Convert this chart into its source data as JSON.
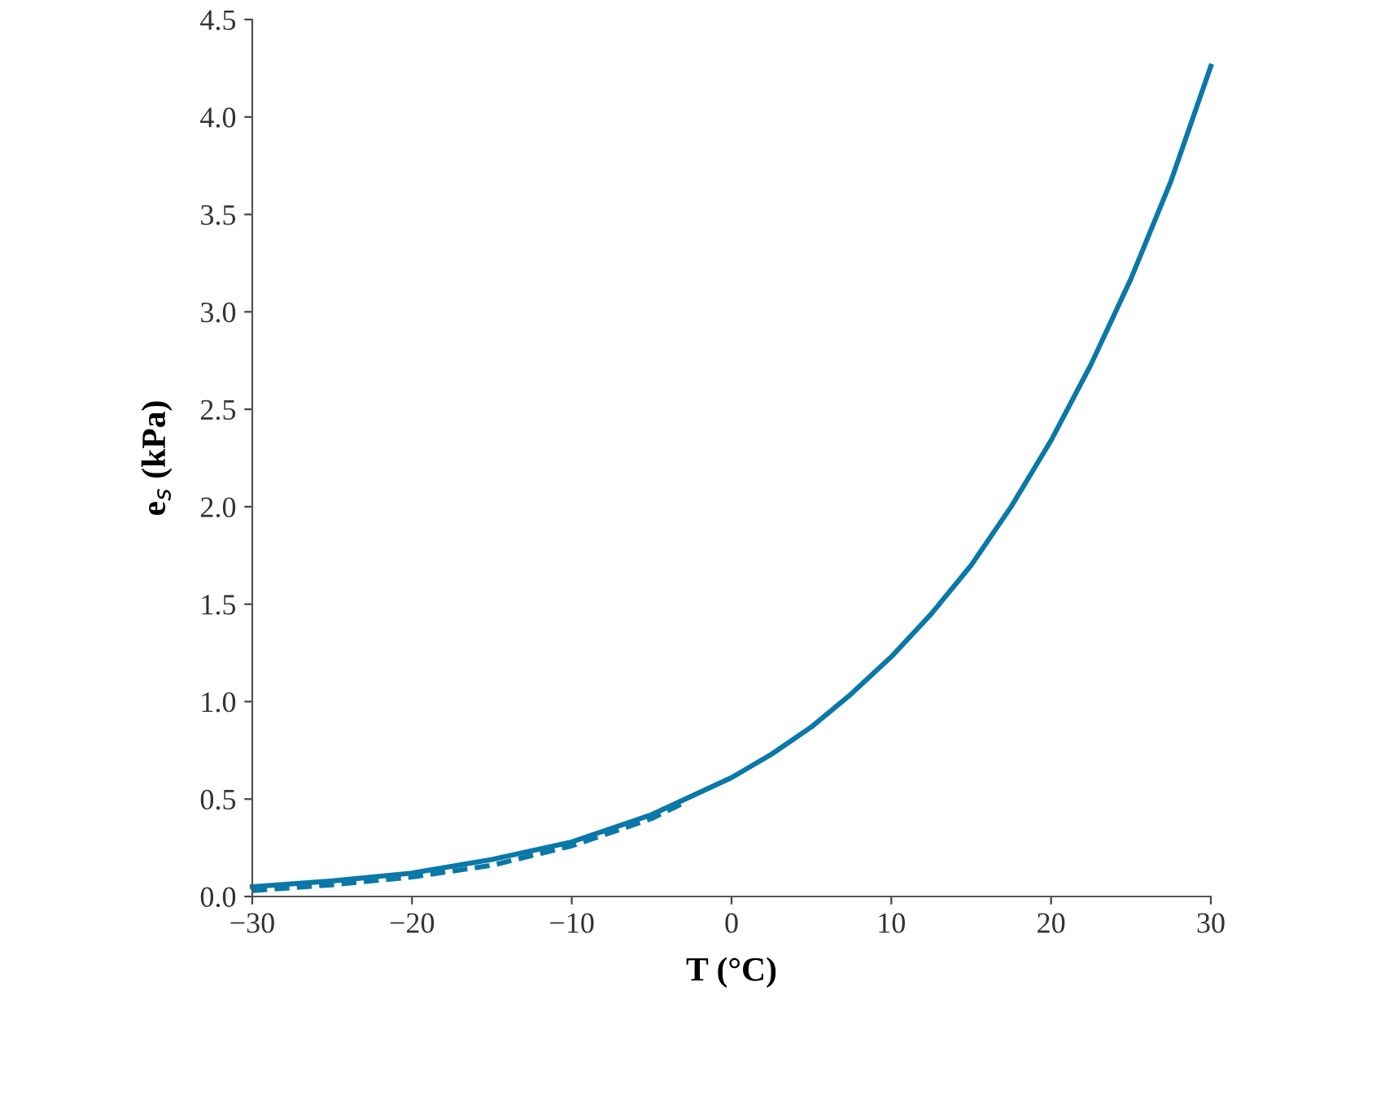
{
  "chart_data": {
    "type": "line",
    "xlabel": "T (°C)",
    "ylabel": "e$_{s}$ (kPa)",
    "xlim": [
      -30,
      30
    ],
    "ylim": [
      0,
      4.5
    ],
    "xticks": [
      {
        "value": -30,
        "label": "−30"
      },
      {
        "value": -20,
        "label": "−20"
      },
      {
        "value": -10,
        "label": "−10"
      },
      0,
      10,
      20,
      30
    ],
    "yticks": [
      {
        "value": 0,
        "label": "0.0"
      },
      {
        "value": 0.5,
        "label": "0.5"
      },
      {
        "value": 1,
        "label": "1.0"
      },
      {
        "value": 1.5,
        "label": "1.5"
      },
      {
        "value": 2,
        "label": "2.0"
      },
      {
        "value": 2.5,
        "label": "2.5"
      },
      {
        "value": 3,
        "label": "3.0"
      },
      {
        "value": 3.5,
        "label": "3.5"
      },
      {
        "value": 4,
        "label": "4.0"
      },
      {
        "value": 4.5,
        "label": "4.5"
      }
    ],
    "grid": false,
    "series": [
      {
        "color": "#0a78a8",
        "line_style": "solid",
        "x": [
          -30,
          -25,
          -20,
          -15,
          -10,
          -5,
          0,
          2.5,
          5,
          7.5,
          10,
          12.5,
          15,
          17.5,
          20,
          22.5,
          25,
          27.5,
          30
        ],
        "values": [
          0.05,
          0.08,
          0.12,
          0.19,
          0.28,
          0.42,
          0.61,
          0.73,
          0.87,
          1.04,
          1.23,
          1.45,
          1.7,
          2.0,
          2.34,
          2.73,
          3.17,
          3.67,
          4.26
        ]
      },
      {
        "color": "#0a78a8",
        "line_style": "dashed",
        "x": [
          -30,
          -25,
          -20,
          -15,
          -10,
          -5,
          -3
        ],
        "values": [
          0.03,
          0.06,
          0.1,
          0.16,
          0.26,
          0.4,
          0.48
        ]
      }
    ]
  }
}
